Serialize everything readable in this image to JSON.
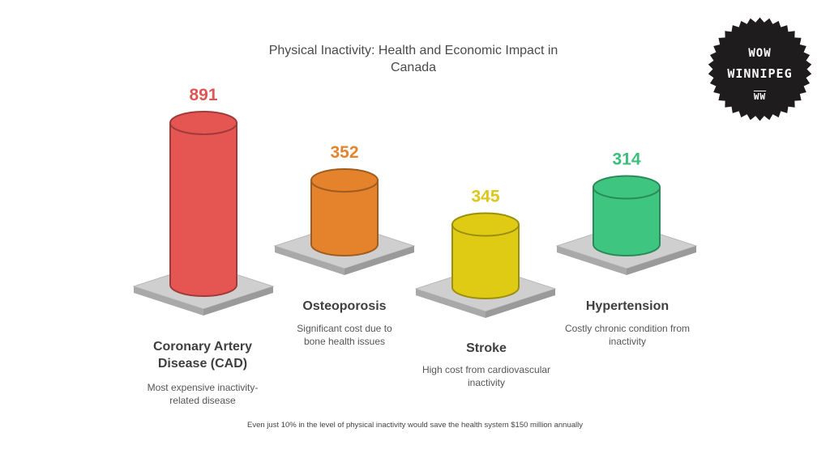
{
  "chart_data": {
    "type": "bar",
    "title": "Physical Inactivity: Health and Economic Impact in Canada",
    "categories": [
      "Coronary Artery Disease (CAD)",
      "Osteoporosis",
      "Stroke",
      "Hypertension"
    ],
    "values": [
      891,
      352,
      345,
      314
    ],
    "descriptions": [
      "Most expensive inactivity-related disease",
      "Significant cost due to bone health issues",
      "High cost from cardiovascular inactivity",
      "Costly chronic condition from inactivity"
    ],
    "colors": [
      "#e55552",
      "#e5832c",
      "#dfcb14",
      "#3ec57f"
    ],
    "value_label_colors": [
      "#df5754",
      "#e5842f",
      "#dcc71a",
      "#3dbf7b"
    ],
    "footnote": "Even just 10% in the level of physical inactivity would save the health system $150 million annually"
  },
  "logo": {
    "line1": "WOW",
    "line2": "WINNIPEG",
    "line3": "WW"
  }
}
